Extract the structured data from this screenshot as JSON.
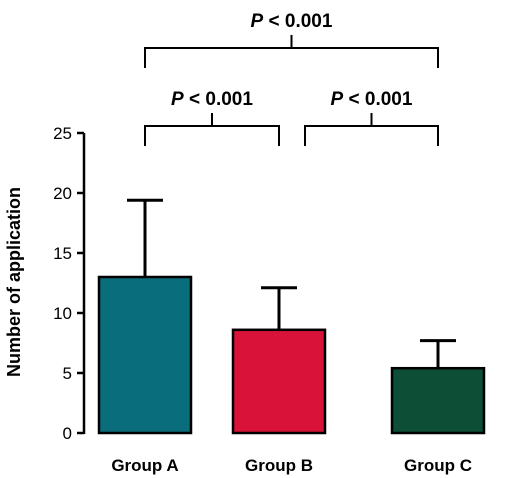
{
  "chart_data": {
    "type": "bar",
    "categories": [
      "Group A",
      "Group B",
      "Group C"
    ],
    "values": [
      13.0,
      8.6,
      5.4
    ],
    "errors": [
      6.4,
      3.5,
      2.3
    ],
    "colors": [
      "#0a6d7c",
      "#d81238",
      "#0c4e36"
    ],
    "ylabel": "Number of application",
    "ylim": [
      0,
      25
    ],
    "yticks": [
      0,
      5,
      10,
      15,
      20,
      25
    ],
    "significance": [
      {
        "from": 0,
        "to": 1,
        "p_symbol": "P",
        "p_text": "< 0.001"
      },
      {
        "from": 1,
        "to": 2,
        "p_symbol": "P",
        "p_text": "< 0.001"
      },
      {
        "from": 0,
        "to": 2,
        "p_symbol": "P",
        "p_text": "< 0.001"
      }
    ]
  }
}
